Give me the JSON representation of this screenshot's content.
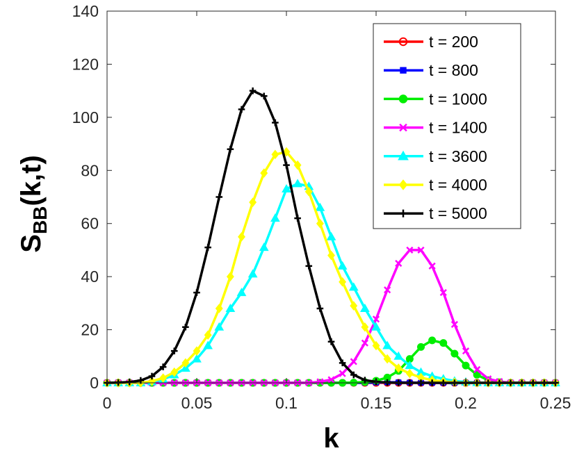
{
  "chart_data": {
    "type": "line",
    "xlabel": "k",
    "ylabel": {
      "main": "S",
      "sub": "BB",
      "rest": "(k,t)"
    },
    "xlim": [
      0,
      0.25
    ],
    "ylim": [
      0,
      140
    ],
    "xticks": [
      0,
      0.05,
      0.1,
      0.15,
      0.2,
      0.25
    ],
    "xtick_labels": [
      "0",
      "0.05",
      "0.1",
      "0.15",
      "0.2",
      "0.25"
    ],
    "yticks": [
      0,
      20,
      40,
      60,
      80,
      100,
      120,
      140
    ],
    "ytick_labels": [
      "0",
      "20",
      "40",
      "60",
      "80",
      "100",
      "120",
      "140"
    ],
    "grid": false,
    "legend_position": "top-right",
    "x": [
      0,
      0.00625,
      0.0125,
      0.01875,
      0.025,
      0.03125,
      0.0375,
      0.04375,
      0.05,
      0.05625,
      0.0625,
      0.06875,
      0.075,
      0.08125,
      0.0875,
      0.09375,
      0.1,
      0.10625,
      0.1125,
      0.11875,
      0.125,
      0.13125,
      0.1375,
      0.14375,
      0.15,
      0.15625,
      0.1625,
      0.16875,
      0.175,
      0.18125,
      0.1875,
      0.19375,
      0.2,
      0.20625,
      0.2125,
      0.21875,
      0.225,
      0.23125,
      0.2375,
      0.24375,
      0.25
    ],
    "series": [
      {
        "name": "t = 200",
        "color": "#ff0000",
        "marker": "circle",
        "values": [
          0,
          0,
          0,
          0,
          0,
          0,
          0,
          0,
          0,
          0,
          0,
          0,
          0,
          0,
          0,
          0,
          0,
          0,
          0,
          0,
          0,
          0,
          0,
          0,
          0,
          0,
          0,
          0,
          0,
          0,
          0,
          0,
          0,
          0,
          0,
          0,
          0,
          0,
          0,
          0,
          0
        ]
      },
      {
        "name": "t = 800",
        "color": "#0000ff",
        "marker": "square",
        "values": [
          0,
          0,
          0,
          0,
          0,
          0,
          0,
          0,
          0,
          0,
          0,
          0,
          0,
          0,
          0,
          0,
          0,
          0,
          0,
          0,
          0,
          0,
          0,
          0,
          0.1,
          0.2,
          0.2,
          0.1,
          0,
          0,
          0,
          0,
          0,
          0,
          0,
          0,
          0,
          0,
          0,
          0,
          0
        ]
      },
      {
        "name": "t = 1000",
        "color": "#00ee00",
        "marker": "circle",
        "values": [
          0,
          0,
          0,
          0,
          0,
          0,
          0,
          0,
          0,
          0,
          0,
          0,
          0,
          0,
          0,
          0,
          0,
          0,
          0,
          0,
          0,
          0,
          0.1,
          0.3,
          0.8,
          2,
          4.5,
          9,
          13.5,
          16,
          15,
          11,
          6.5,
          3,
          1,
          0.3,
          0,
          0,
          0,
          0,
          0
        ]
      },
      {
        "name": "t = 1400",
        "color": "#ff00ff",
        "marker": "x",
        "values": [
          0,
          0,
          0,
          0,
          0,
          0,
          0,
          0,
          0,
          0,
          0,
          0,
          0,
          0,
          0,
          0,
          0,
          0,
          0,
          0.4,
          1.2,
          3.5,
          8,
          15,
          24,
          35,
          45,
          50,
          50,
          44,
          34,
          22,
          12,
          5,
          1.5,
          0.5,
          0,
          0,
          0,
          0,
          0
        ]
      },
      {
        "name": "t = 3600",
        "color": "#00ffff",
        "marker": "triangle",
        "values": [
          0,
          0,
          0,
          0,
          0.4,
          1.3,
          3,
          5.5,
          9,
          14,
          21,
          28,
          34,
          41,
          51,
          62,
          73,
          75,
          74,
          66,
          55,
          44,
          36,
          28,
          21,
          14,
          10,
          6.5,
          4,
          2.5,
          1.5,
          0.7,
          0.3,
          0.1,
          0,
          0,
          0,
          0,
          0,
          0,
          0
        ]
      },
      {
        "name": "t = 4000",
        "color": "#ffff00",
        "marker": "diamond",
        "values": [
          0,
          0,
          0,
          0,
          0.6,
          1.8,
          4,
          7.5,
          12,
          18,
          28,
          40,
          55,
          68,
          79,
          86,
          87,
          82,
          72,
          60,
          48,
          38,
          29,
          21,
          14,
          9,
          5.5,
          3.5,
          2,
          1,
          0.5,
          0.2,
          0,
          0,
          0,
          0,
          0,
          0,
          0,
          0,
          0
        ]
      },
      {
        "name": "t = 5000",
        "color": "#000000",
        "marker": "plus",
        "values": [
          0,
          0.1,
          0.3,
          0.9,
          2.5,
          6,
          12,
          21,
          34,
          51,
          70,
          88,
          103,
          110,
          108,
          98,
          82,
          62,
          44,
          28,
          15.5,
          7.5,
          3,
          1,
          0.4,
          0.1,
          0,
          0,
          0,
          0,
          0,
          0,
          0,
          0,
          0,
          0,
          0,
          0,
          0,
          0,
          0
        ]
      }
    ]
  }
}
